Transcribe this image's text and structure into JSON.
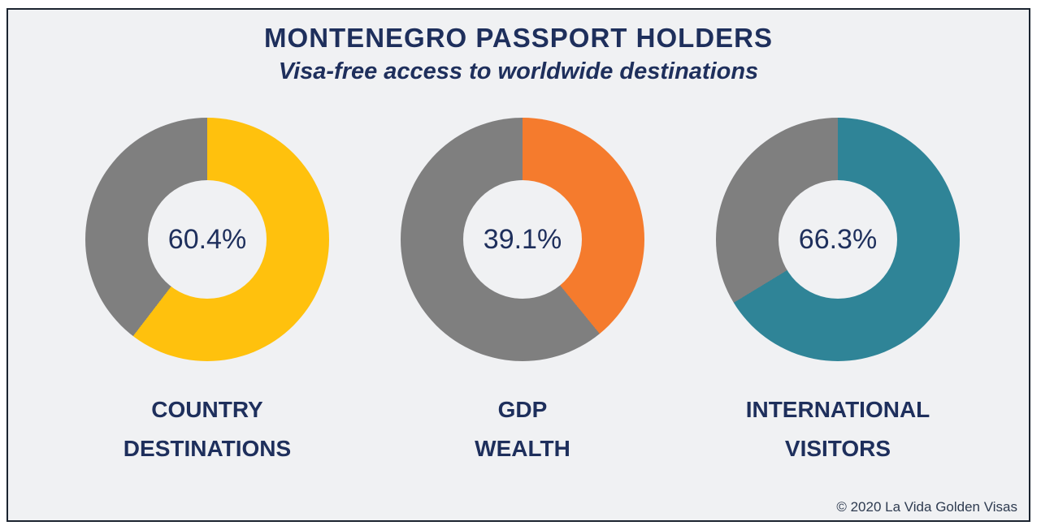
{
  "header": {
    "title": "MONTENEGRO PASSPORT HOLDERS",
    "subtitle": "Visa-free access to worldwide destinations"
  },
  "chart_data": [
    {
      "type": "donut",
      "label": "COUNTRY DESTINATIONS",
      "label_line1": "COUNTRY",
      "label_line2": "DESTINATIONS",
      "value": 60.4,
      "value_display": "60.4%",
      "color": "#ffc10d",
      "remainder_color": "#7f7f7f",
      "start": "top",
      "direction": "clockwise"
    },
    {
      "type": "donut",
      "label": "GDP WEALTH",
      "label_line1": "GDP",
      "label_line2": "WEALTH",
      "value": 39.1,
      "value_display": "39.1%",
      "color": "#f57b2d",
      "remainder_color": "#7f7f7f",
      "start": "top",
      "direction": "clockwise"
    },
    {
      "type": "donut",
      "label": "INTERNATIONAL VISITORS",
      "label_line1": "INTERNATIONAL",
      "label_line2": "VISITORS",
      "value": 66.3,
      "value_display": "66.3%",
      "color": "#2f8497",
      "remainder_color": "#7f7f7f",
      "start": "top",
      "direction": "clockwise"
    }
  ],
  "footer": {
    "copyright": "© 2020 La Vida Golden Visas"
  },
  "theme": {
    "panel-bg": "#f0f1f3",
    "border": "#1b2430",
    "navy": "#1e2f5c",
    "footer-text": "#2e3b50"
  }
}
